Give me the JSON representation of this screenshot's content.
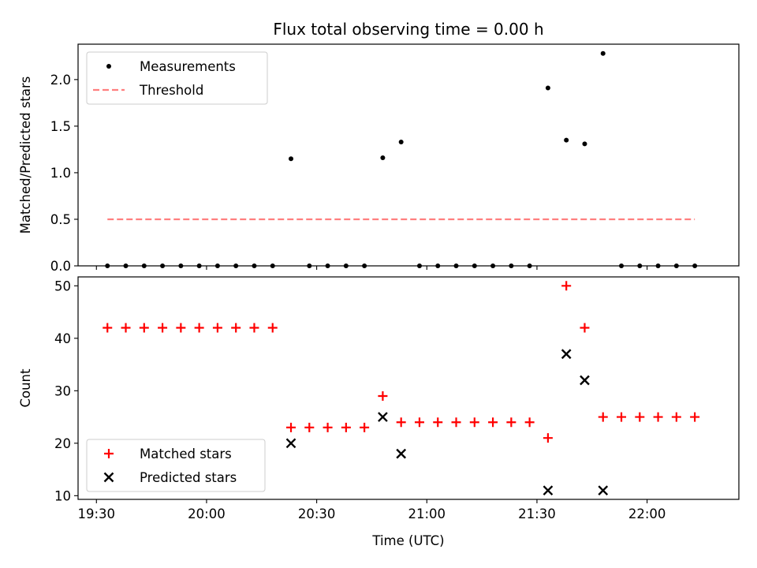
{
  "chart_data": [
    {
      "type": "scatter",
      "title": "Flux total observing time = 0.00 h",
      "xlabel": "",
      "ylabel": "Matched/Predicted stars",
      "xlim": [
        "19:25",
        "22:25"
      ],
      "ylim": [
        0,
        2.38
      ],
      "yticks": [
        "0.0",
        "0.5",
        "1.0",
        "1.5",
        "2.0"
      ],
      "legend": "upper-left",
      "series": [
        {
          "name": "Measurements",
          "marker": "dot",
          "color": "#000000",
          "x": [
            "19:33",
            "19:38",
            "19:43",
            "19:48",
            "19:53",
            "19:58",
            "20:03",
            "20:08",
            "20:13",
            "20:18",
            "20:23",
            "20:28",
            "20:33",
            "20:38",
            "20:43",
            "20:48",
            "20:53",
            "20:58",
            "21:03",
            "21:08",
            "21:13",
            "21:18",
            "21:23",
            "21:28",
            "21:33",
            "21:38",
            "21:43",
            "21:48",
            "21:53",
            "21:58",
            "22:03",
            "22:08",
            "22:13"
          ],
          "y": [
            0,
            0,
            0,
            0,
            0,
            0,
            0,
            0,
            0,
            0,
            1.15,
            0,
            0,
            0,
            0,
            1.16,
            1.33,
            0,
            0,
            0,
            0,
            0,
            0,
            0,
            1.91,
            1.35,
            1.31,
            2.28,
            0,
            0,
            0,
            0,
            0
          ]
        },
        {
          "name": "Threshold",
          "style": "dashed",
          "color": "#ff7f7f",
          "x": [
            "19:33",
            "22:13"
          ],
          "y": [
            0.5,
            0.5
          ]
        }
      ]
    },
    {
      "type": "scatter",
      "title": "",
      "xlabel": "Time (UTC)",
      "ylabel": "Count",
      "xlim": [
        "19:25",
        "22:25"
      ],
      "ylim": [
        9.3,
        51.7
      ],
      "xticks": [
        "19:30",
        "20:00",
        "20:30",
        "21:00",
        "21:30",
        "22:00"
      ],
      "yticks": [
        "10",
        "20",
        "30",
        "40",
        "50"
      ],
      "legend": "lower-left",
      "series": [
        {
          "name": "Matched stars",
          "marker": "plus",
          "color": "#ff0000",
          "x": [
            "19:33",
            "19:38",
            "19:43",
            "19:48",
            "19:53",
            "19:58",
            "20:03",
            "20:08",
            "20:13",
            "20:18",
            "20:23",
            "20:28",
            "20:33",
            "20:38",
            "20:43",
            "20:48",
            "20:53",
            "20:58",
            "21:03",
            "21:08",
            "21:13",
            "21:18",
            "21:23",
            "21:28",
            "21:33",
            "21:38",
            "21:43",
            "21:48",
            "21:53",
            "21:58",
            "22:03",
            "22:08",
            "22:13"
          ],
          "y": [
            42,
            42,
            42,
            42,
            42,
            42,
            42,
            42,
            42,
            42,
            23,
            23,
            23,
            23,
            23,
            29,
            24,
            24,
            24,
            24,
            24,
            24,
            24,
            24,
            21,
            50,
            42,
            25,
            25,
            25,
            25,
            25,
            25
          ]
        },
        {
          "name": "Predicted stars",
          "marker": "x",
          "color": "#000000",
          "x": [
            "20:23",
            "20:48",
            "20:53",
            "21:33",
            "21:38",
            "21:43",
            "21:48"
          ],
          "y": [
            20,
            25,
            18,
            11,
            37,
            32,
            11
          ]
        }
      ]
    }
  ]
}
